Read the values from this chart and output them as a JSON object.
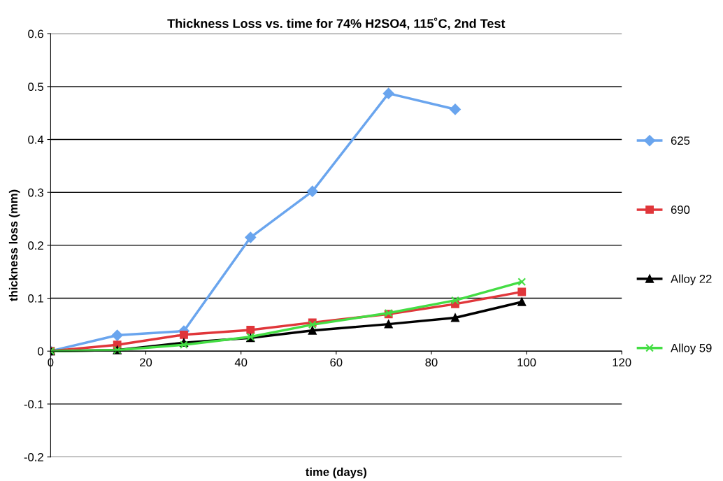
{
  "chart_data": {
    "type": "line",
    "title": "Thickness Loss vs. time for 74% H2SO4, 115˚C, 2nd Test",
    "xlabel": "time (days)",
    "ylabel": "thickness loss (mm)",
    "x": [
      0,
      14,
      28,
      42,
      55,
      71,
      85,
      99
    ],
    "series": [
      {
        "name": "625",
        "color": "#6aa5ee",
        "marker": "diamond",
        "values": [
          0,
          0.03,
          0.038,
          0.215,
          0.302,
          0.487,
          0.457,
          null
        ]
      },
      {
        "name": "690",
        "color": "#e0363a",
        "marker": "square",
        "values": [
          0,
          0.012,
          0.031,
          0.04,
          0.054,
          0.07,
          0.089,
          0.112
        ]
      },
      {
        "name": "Alloy 22",
        "color": "#000000",
        "marker": "triangle",
        "values": [
          0,
          0.002,
          0.016,
          0.025,
          0.039,
          0.051,
          0.063,
          0.093
        ]
      },
      {
        "name": "Alloy 59",
        "color": "#44dd44",
        "marker": "cross",
        "values": [
          0,
          0.002,
          0.012,
          0.027,
          0.05,
          0.072,
          0.096,
          0.131
        ]
      }
    ],
    "xlim": [
      0,
      120
    ],
    "xticks": [
      0,
      20,
      40,
      60,
      80,
      100,
      120
    ],
    "ylim": [
      -0.2,
      0.6
    ],
    "yticks": [
      -0.2,
      -0.1,
      0,
      0.1,
      0.2,
      0.3,
      0.4,
      0.5,
      0.6
    ],
    "grid": "y",
    "legend": "right",
    "line_style": "solid"
  }
}
